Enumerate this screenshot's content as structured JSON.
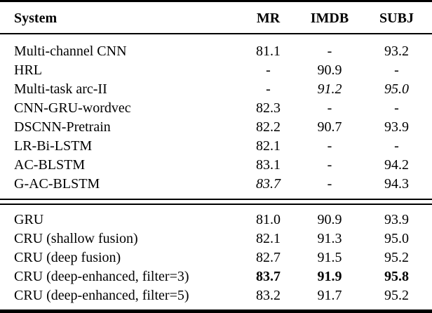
{
  "table": {
    "columns": [
      "System",
      "MR",
      "IMDB",
      "SUBJ"
    ],
    "text_color": "#000000",
    "rule_color": "#000000",
    "sections": [
      {
        "name": "baseline-systems",
        "rows": [
          {
            "system": "Multi-channel CNN",
            "values": [
              "81.1",
              "-",
              "93.2"
            ],
            "styles": [
              "normal",
              "normal",
              "normal"
            ]
          },
          {
            "system": "HRL",
            "values": [
              "-",
              "90.9",
              "-"
            ],
            "styles": [
              "normal",
              "normal",
              "normal"
            ]
          },
          {
            "system": "Multi-task arc-II",
            "values": [
              "-",
              "91.2",
              "95.0"
            ],
            "styles": [
              "normal",
              "italic",
              "italic"
            ]
          },
          {
            "system": "CNN-GRU-wordvec",
            "values": [
              "82.3",
              "-",
              "-"
            ],
            "styles": [
              "normal",
              "normal",
              "normal"
            ]
          },
          {
            "system": "DSCNN-Pretrain",
            "values": [
              "82.2",
              "90.7",
              "93.9"
            ],
            "styles": [
              "normal",
              "normal",
              "normal"
            ]
          },
          {
            "system": "LR-Bi-LSTM",
            "values": [
              "82.1",
              "-",
              "-"
            ],
            "styles": [
              "normal",
              "normal",
              "normal"
            ]
          },
          {
            "system": "AC-BLSTM",
            "values": [
              "83.1",
              "-",
              "94.2"
            ],
            "styles": [
              "normal",
              "normal",
              "normal"
            ]
          },
          {
            "system": "G-AC-BLSTM",
            "values": [
              "83.7",
              "-",
              "94.3"
            ],
            "styles": [
              "italic",
              "normal",
              "normal"
            ]
          }
        ]
      },
      {
        "name": "proposed-systems",
        "rows": [
          {
            "system": "GRU",
            "values": [
              "81.0",
              "90.9",
              "93.9"
            ],
            "styles": [
              "normal",
              "normal",
              "normal"
            ]
          },
          {
            "system": "CRU (shallow fusion)",
            "values": [
              "82.1",
              "91.3",
              "95.0"
            ],
            "styles": [
              "normal",
              "normal",
              "normal"
            ]
          },
          {
            "system": "CRU (deep fusion)",
            "values": [
              "82.7",
              "91.5",
              "95.2"
            ],
            "styles": [
              "normal",
              "normal",
              "normal"
            ]
          },
          {
            "system": "CRU (deep-enhanced, filter=3)",
            "values": [
              "83.7",
              "91.9",
              "95.8"
            ],
            "styles": [
              "bold",
              "bold",
              "bold"
            ]
          },
          {
            "system": "CRU (deep-enhanced, filter=5)",
            "values": [
              "83.2",
              "91.7",
              "95.2"
            ],
            "styles": [
              "normal",
              "normal",
              "normal"
            ]
          }
        ]
      }
    ]
  }
}
